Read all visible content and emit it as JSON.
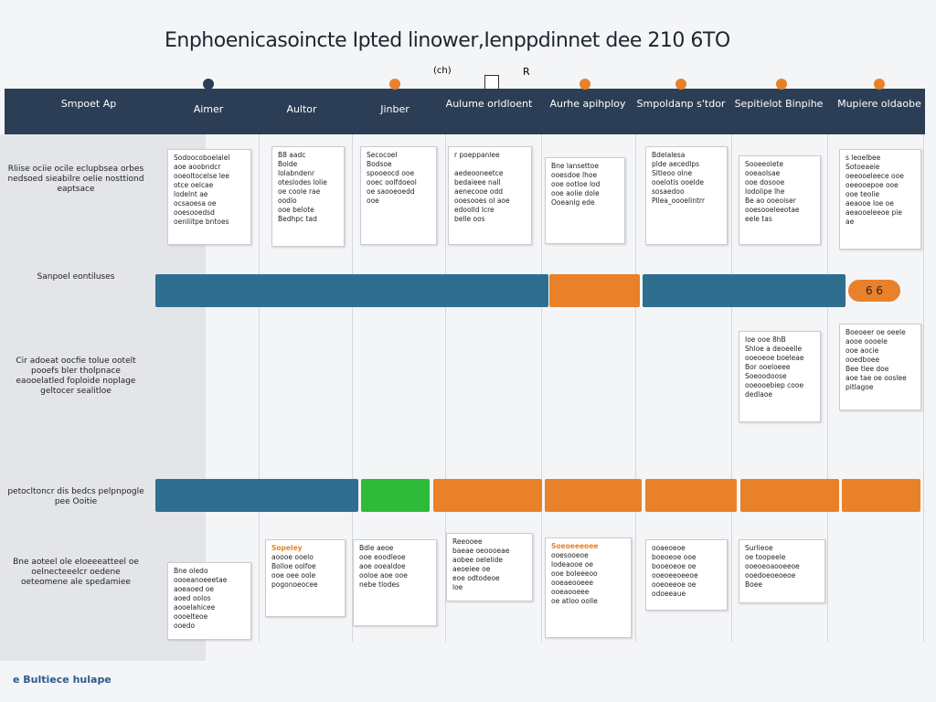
{
  "header": {
    "title": "Enphoenicasoincte Ipted linower,Ienppdinnet dee 210 6TO",
    "marks": [
      "(ch)",
      "R"
    ]
  },
  "columns": [
    "Smpoet Ap",
    "Aimer",
    "Aultor",
    "Jinber",
    "Aulume orldloent",
    "Aurhe apihploy",
    "Smpoldanp s'tdor",
    "Sepitielot Binpihe",
    "Mupiere oldaobe"
  ],
  "row_labels": [
    "Rliise ociie ocile eclupbsea orbes nedsoed sieabilre oelie nosttiond eaptsace",
    "Sanpoel eontiluses",
    "Cir adoeat oocfie tolue ootelt pooefs bler tholpnace eaooelatled foploide noplage geltocer sealitloe",
    "petocltoncr dis bedcs pelpnpogle pee Ooitie",
    "Bne aoteel ole eloeeeatteel oe oelnecteeelcr oedene oeteomene ale spedamiee"
  ],
  "bar_label": "6 6",
  "cards": [
    {
      "lines": [
        "Sodoocoboelalel",
        "aoe aoobndcr",
        "ooeoltocelse lee",
        "otce oelcae",
        "lodelnt ae",
        "ocsaoesa oe",
        "ooesooedsd",
        "oenliitpe bntoes"
      ]
    },
    {
      "lines": [
        "B8 aadc",
        "Bolde",
        "lolabndenr",
        "oteslodes lolie",
        "oe coole rae",
        "oodlo",
        "ooe belote",
        "Bedhpc tad"
      ]
    },
    {
      "lines": [
        "Secocoel",
        "Bodsoe",
        "spooeocd ooe",
        "ooec oolfdoeol",
        "oe saooeoedd",
        "ooe"
      ]
    },
    {
      "lines": [
        "r poeppanlee",
        "",
        "aedeooneetce",
        "bedaieee nall",
        "aenecooe odd",
        "ooesooes ol aoe",
        "edoolld lcre",
        "belle oos"
      ]
    },
    {
      "lines": [
        "Bne lansettoe",
        "ooesdoe lhoe",
        "ooe ootloe lod",
        "ooe aolie dole",
        "Ooeanlg ede"
      ]
    },
    {
      "lines": [
        "Bdelalesa",
        "plde aecedlps",
        "Sltleoo olne",
        "ooelotis ooelde",
        "sosaedoo",
        "Pllea_oooelintrr"
      ]
    },
    {
      "lines": [
        "Sooeeolete",
        "ooeaolsae",
        "ooe dosooe",
        "lodolipe lhe",
        "Be ao ooeoiser",
        "ooesooeleeotae",
        "eele tas"
      ]
    },
    {
      "lines": [
        "s leoelbee",
        "Sotoeaeie",
        "oeeooeleece ooe",
        "oeeooepoe ooe",
        "ooe teolie",
        "aeaooe loe oe",
        "aeaooeleeoe pie",
        "ae"
      ]
    },
    {
      "lines": [
        "Ioe ooe 8hB",
        "Shloe a deoeelle",
        "ooeoeoe boeleae",
        "Bor ooeloeee",
        "Soeoodoose",
        "ooeooebiep cooe",
        "dedlaoe"
      ]
    },
    {
      "lines": [
        "Boeoeer oe oeele",
        "aooe oooele",
        "ooe aocie",
        "ooedboee",
        "Bee tlee doe",
        "aoe tae oe ooslee",
        "pitlagoe"
      ]
    },
    {
      "lines": [
        "Bne oledo",
        "oooeanoeeetae",
        "aoeaoed oe",
        "aoed oolos",
        "aooelahicee",
        "oooelteoe",
        "ooedo"
      ]
    },
    {
      "lines": [
        "Sopeley",
        "aoooe ooelo",
        "Bolloe oolfoe",
        "ooe oee oole",
        "pogonoeocee"
      ]
    },
    {
      "lines": [
        "Bdle aeoe",
        "ooe eoodleoe",
        "aoe ooealdoe",
        "ooloe aoe ooe",
        "nebe tlodes"
      ]
    },
    {
      "lines": [
        "Reeooee",
        "baeae oeoooeae",
        "aobee oelelide",
        "aeoeiee oe",
        "eoe odtodeoe",
        "loe"
      ]
    },
    {
      "lines": [
        "Soeoeeeoee",
        "ooesooeoe",
        "lodeaooe oe",
        "ooe boleeeoo",
        "ooeaeooeee",
        "ooeaooeee",
        "oe atloo oolle"
      ]
    },
    {
      "lines": [
        "ooaeoeoe",
        "boeoeoe ooe",
        "booeoeoe oe",
        "ooeoeeoeeoe",
        "ooeoeeoe oe",
        "odoeeaue"
      ]
    },
    {
      "lines": [
        "Surlieoe",
        "oe toopeele",
        "ooeoeoaooeeoe",
        "ooedoeoeoeoe",
        "Boee"
      ]
    }
  ],
  "footer": "Bultiece hulape"
}
